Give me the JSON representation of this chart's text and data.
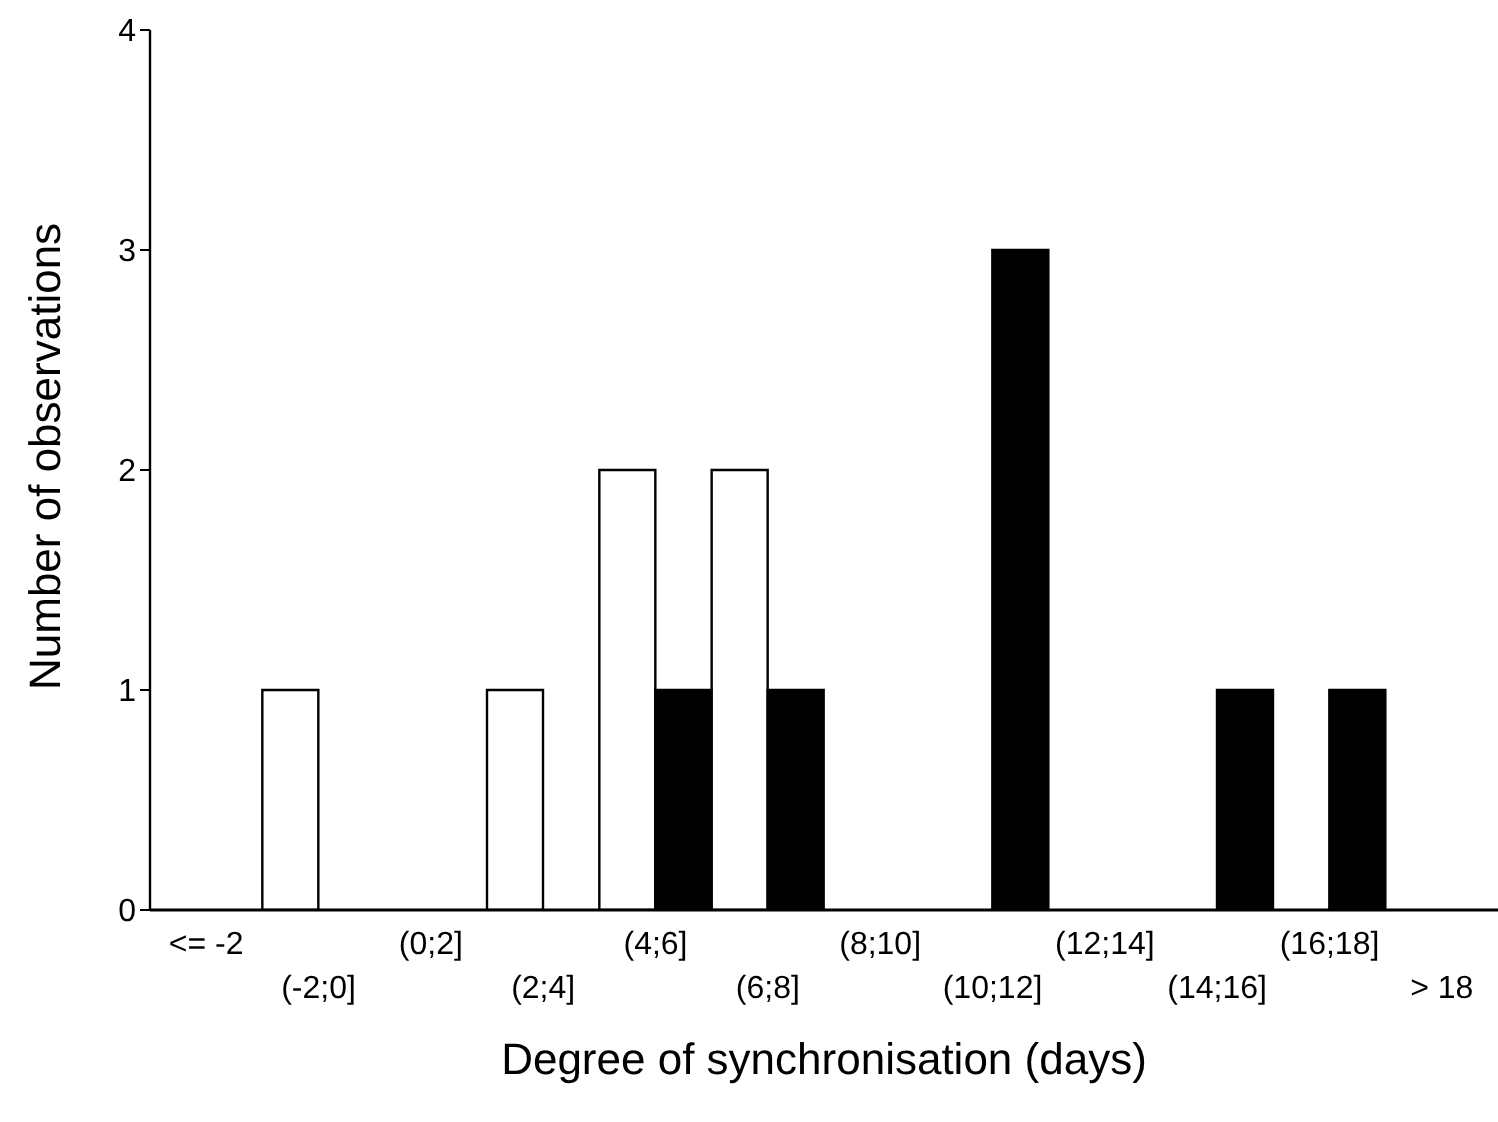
{
  "chart_data": {
    "type": "bar",
    "xlabel": "Degree of synchronisation (days)",
    "ylabel": "Number of observations",
    "categories": [
      "<= -2",
      "(-2;0]",
      "(0;2]",
      "(2;4]",
      "(4;6]",
      "(6;8]",
      "(8;10]",
      "(10;12]",
      "(12;14]",
      "(14;16]",
      "(16;18]",
      "> 18"
    ],
    "series": [
      {
        "color": "#ffffff",
        "values": [
          0,
          1,
          0,
          1,
          2,
          2,
          0,
          0,
          0,
          0,
          0,
          0
        ]
      },
      {
        "color": "#000000",
        "values": [
          0,
          0,
          0,
          0,
          1,
          1,
          0,
          3,
          0,
          1,
          1,
          0
        ]
      }
    ],
    "ylim": [
      0,
      4
    ],
    "yticks": [
      0,
      1,
      2,
      3,
      4
    ],
    "grid": false,
    "legend": false
  }
}
